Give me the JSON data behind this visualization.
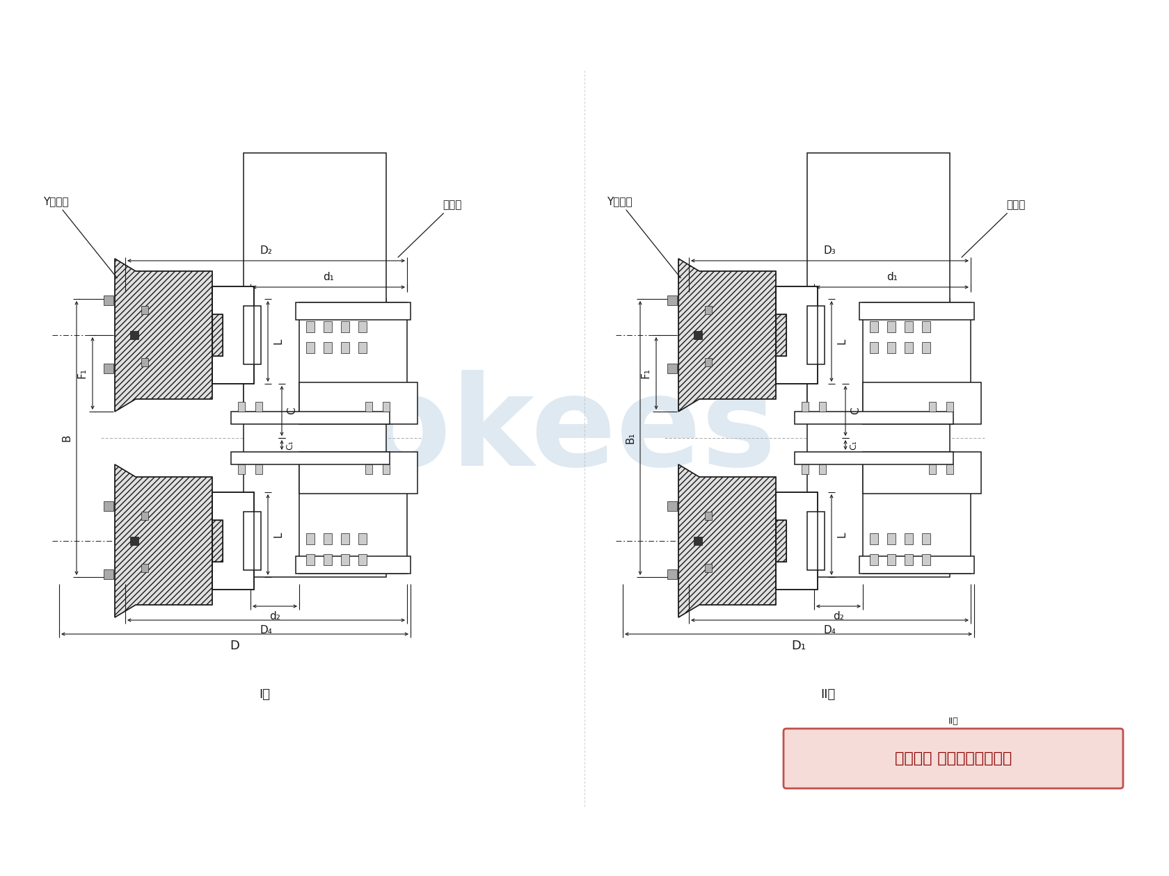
{
  "bg": "#ffffff",
  "lc": "#1a1a1a",
  "hatch_fc": "#e0e0e0",
  "wm_color": "#b0c8e0",
  "wm_alpha": 0.4,
  "stamp_bg": "#f5dcd8",
  "stamp_ec": "#c0504d",
  "stamp_txt": "版权所有 侵权必被严厉追究",
  "lbl_I": "I型",
  "lbl_II": "II型",
  "lbl_y_shaft": "Y型轴孔",
  "lbl_oil": "注油孔",
  "lbl_D2": "D₂",
  "lbl_D3": "D₃",
  "lbl_D4": "D₄",
  "lbl_D": "D",
  "lbl_D1": "D₁",
  "lbl_d1": "d₁",
  "lbl_d2": "d₂",
  "lbl_F1": "F₁",
  "lbl_L": "L",
  "lbl_C": "C",
  "lbl_C1": "C₁",
  "lbl_B": "B",
  "lbl_B1": "B₁",
  "fs_small": 9,
  "fs_med": 11,
  "fs_large": 13,
  "fs_stamp": 16
}
